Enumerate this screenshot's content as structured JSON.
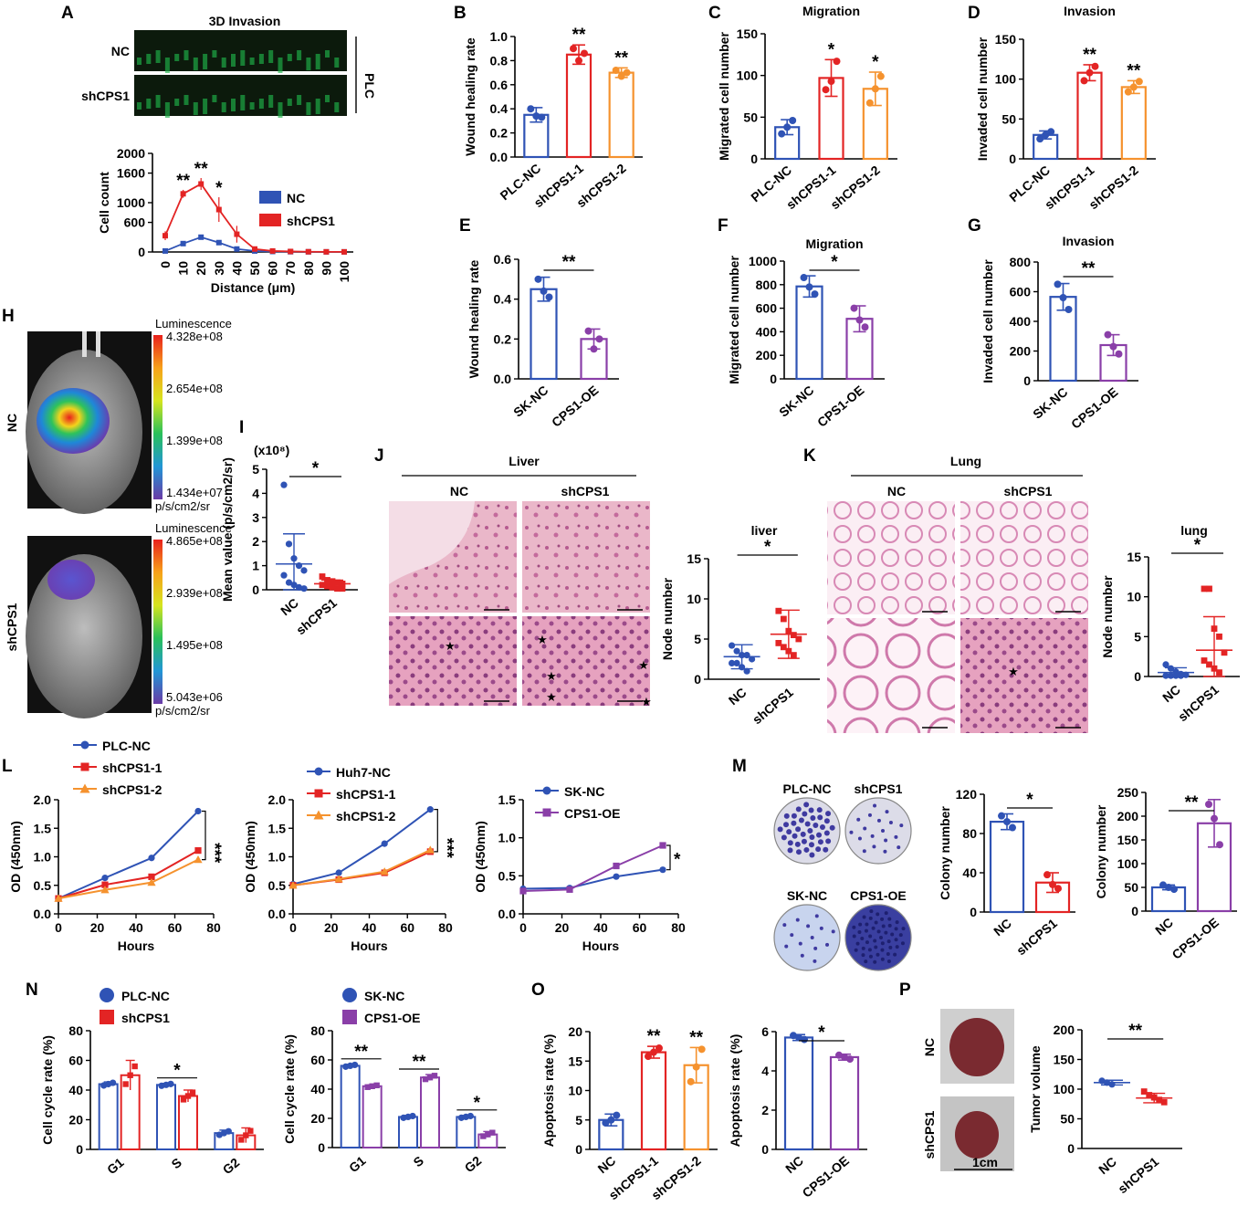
{
  "colors": {
    "blue": "#2f53b5",
    "red": "#e32424",
    "orange": "#f5922e",
    "purple": "#8a3fa8"
  },
  "panel_labels": [
    "A",
    "B",
    "C",
    "D",
    "E",
    "F",
    "G",
    "H",
    "I",
    "J",
    "K",
    "L",
    "M",
    "N",
    "O",
    "P"
  ],
  "A": {
    "title": "3D Invasion",
    "rows": [
      "NC",
      "shCPS1"
    ],
    "side": "PLC"
  },
  "H": {
    "rows": [
      "NC",
      "shCPS1"
    ],
    "scales": [
      {
        "title": "Luminescence",
        "ticks": [
          "4.328e+08",
          "2.654e+08",
          "1.399e+08",
          "1.434e+07"
        ],
        "unit": "p/s/cm2/sr"
      },
      {
        "title": "Luminescence",
        "ticks": [
          "4.865e+08",
          "2.939e+08",
          "1.495e+08",
          "5.043e+06"
        ],
        "unit": "p/s/cm2/sr"
      }
    ]
  },
  "J": {
    "header": "Liver",
    "cols": [
      "NC",
      "shCPS1"
    ]
  },
  "K": {
    "header": "Lung",
    "cols": [
      "NC",
      "shCPS1"
    ]
  },
  "M": {
    "dishes": [
      "PLC-NC",
      "shCPS1",
      "SK-NC",
      "CPS1-OE"
    ]
  },
  "P": {
    "rows": [
      "NC",
      "shCPS1"
    ],
    "scale": "1cm"
  },
  "chart_data": [
    {
      "id": "A",
      "type": "line",
      "xlabel": "Distance  (μm)",
      "ylabel": "Cell count",
      "ylim": [
        0,
        2000
      ],
      "yticks": [
        0,
        600,
        1000,
        1600,
        2000
      ],
      "x": [
        0,
        10,
        20,
        30,
        40,
        50,
        60,
        70,
        80,
        90,
        100
      ],
      "xticks": [
        "0",
        "10",
        "20",
        "30",
        "40",
        "50",
        "60",
        "70",
        "80",
        "90",
        "100"
      ],
      "legend": "right",
      "series": [
        {
          "name": "NC",
          "color": "#2f53b5",
          "values": [
            20,
            170,
            300,
            190,
            60,
            20,
            10,
            5,
            3,
            2,
            2
          ]
        },
        {
          "name": "shCPS1",
          "color": "#e32424",
          "values": [
            330,
            1180,
            1380,
            860,
            360,
            60,
            20,
            10,
            5,
            3,
            2
          ],
          "err": [
            90,
            80,
            120,
            250,
            170,
            0,
            0,
            0,
            0,
            0,
            0
          ]
        }
      ],
      "annotations": [
        {
          "text": "**",
          "x": 10
        },
        {
          "text": "**",
          "x": 20
        },
        {
          "text": "*",
          "x": 30
        }
      ]
    },
    {
      "id": "B",
      "type": "bar",
      "ylabel": "Wound healing rate",
      "ylim": [
        0,
        1.0
      ],
      "yticks": [
        "0.0",
        "0.2",
        "0.4",
        "0.6",
        "0.8",
        "1.0"
      ],
      "categories": [
        "PLC-NC",
        "shCPS1-1",
        "shCPS1-2"
      ],
      "values": [
        0.35,
        0.85,
        0.7
      ],
      "err": [
        0.06,
        0.08,
        0.04
      ],
      "colors": [
        "#2f53b5",
        "#e32424",
        "#f5922e"
      ],
      "points": [
        [
          0.4,
          0.34,
          0.33
        ],
        [
          0.9,
          0.8,
          0.86
        ],
        [
          0.72,
          0.67,
          0.7
        ]
      ],
      "sig": [
        "",
        "**",
        "**"
      ]
    },
    {
      "id": "C",
      "type": "bar",
      "title": "Migration",
      "ylabel": "Migrated cell number",
      "ylim": [
        0,
        150
      ],
      "yticks": [
        "0",
        "50",
        "100",
        "150"
      ],
      "categories": [
        "PLC-NC",
        "shCPS1-1",
        "shCPS1-2"
      ],
      "values": [
        38,
        97,
        84
      ],
      "err": [
        9,
        22,
        20
      ],
      "colors": [
        "#2f53b5",
        "#e32424",
        "#f5922e"
      ],
      "points": [
        [
          30,
          38,
          46
        ],
        [
          83,
          93,
          117
        ],
        [
          67,
          84,
          99
        ]
      ],
      "sig": [
        "",
        "*",
        "*"
      ]
    },
    {
      "id": "D",
      "type": "bar",
      "title": "Invasion",
      "ylabel": "Invaded cell number",
      "ylim": [
        0,
        150
      ],
      "yticks": [
        "0",
        "50",
        "100",
        "150"
      ],
      "categories": [
        "PLC-NC",
        "shCPS1-1",
        "shCPS1-2"
      ],
      "values": [
        30,
        108,
        90
      ],
      "err": [
        5,
        10,
        8
      ],
      "colors": [
        "#2f53b5",
        "#e32424",
        "#f5922e"
      ],
      "points": [
        [
          25,
          30,
          34
        ],
        [
          98,
          108,
          116
        ],
        [
          84,
          90,
          97
        ]
      ],
      "sig": [
        "",
        "**",
        "**"
      ]
    },
    {
      "id": "E",
      "type": "bar",
      "ylabel": "Wound healing rate",
      "ylim": [
        0,
        0.6
      ],
      "yticks": [
        "0.0",
        "0.2",
        "0.4",
        "0.6"
      ],
      "categories": [
        "SK-NC",
        "CPS1-OE"
      ],
      "values": [
        0.45,
        0.2
      ],
      "err": [
        0.06,
        0.05
      ],
      "colors": [
        "#2f53b5",
        "#8a3fa8"
      ],
      "points": [
        [
          0.5,
          0.44,
          0.41
        ],
        [
          0.24,
          0.15,
          0.2
        ]
      ],
      "sig_bracket": "**"
    },
    {
      "id": "F",
      "type": "bar",
      "title": "Migration",
      "ylabel": "Migrated cell number",
      "ylim": [
        0,
        1000
      ],
      "yticks": [
        "0",
        "200",
        "400",
        "600",
        "800",
        "1000"
      ],
      "categories": [
        "SK-NC",
        "CPS1-OE"
      ],
      "values": [
        785,
        510
      ],
      "err": [
        90,
        110
      ],
      "colors": [
        "#2f53b5",
        "#8a3fa8"
      ],
      "points": [
        [
          860,
          780,
          720
        ],
        [
          600,
          500,
          440
        ]
      ],
      "sig_bracket": "*"
    },
    {
      "id": "G",
      "type": "bar",
      "title": "Invasion",
      "ylabel": "Invaded cell number",
      "ylim": [
        0,
        800
      ],
      "yticks": [
        "0",
        "200",
        "400",
        "600",
        "800"
      ],
      "categories": [
        "SK-NC",
        "CPS1-OE"
      ],
      "values": [
        565,
        240
      ],
      "err": [
        90,
        70
      ],
      "colors": [
        "#2f53b5",
        "#8a3fa8"
      ],
      "points": [
        [
          650,
          560,
          480
        ],
        [
          310,
          230,
          180
        ]
      ],
      "sig_bracket": "**"
    },
    {
      "id": "I",
      "type": "scatter",
      "ylabel": "Mean value (p/s/cm2/sr)",
      "scale_note": "(x10⁸)",
      "ylim": [
        0,
        5
      ],
      "yticks": [
        "0",
        "1",
        "2",
        "3",
        "4",
        "5"
      ],
      "categories": [
        "NC",
        "shCPS1"
      ],
      "colors": [
        "#2f53b5",
        "#e32424"
      ],
      "means": [
        1.07,
        0.25
      ],
      "sd": [
        1.25,
        0.15
      ],
      "points": [
        [
          4.35,
          1.9,
          1.3,
          1.0,
          0.8,
          0.6,
          0.3,
          0.2,
          0.1,
          0.05
        ],
        [
          0.55,
          0.4,
          0.35,
          0.3,
          0.25,
          0.2,
          0.15,
          0.1,
          0.05,
          0.05
        ]
      ],
      "sig_bracket": "*"
    },
    {
      "id": "J",
      "type": "scatter",
      "title": "liver",
      "ylabel": "Node number",
      "ylim": [
        0,
        15
      ],
      "yticks": [
        "0",
        "5",
        "10",
        "15"
      ],
      "categories": [
        "NC",
        "shCPS1"
      ],
      "colors": [
        "#2f53b5",
        "#e32424"
      ],
      "means": [
        2.8,
        5.6
      ],
      "sd": [
        1.5,
        3.0
      ],
      "points": [
        [
          4.2,
          3.5,
          3,
          3,
          2.5,
          2,
          2,
          1.5,
          1
        ],
        [
          8.5,
          7.5,
          6,
          5.5,
          5,
          4.5,
          4,
          3.5,
          3
        ]
      ],
      "sig_bracket": "*"
    },
    {
      "id": "K",
      "type": "scatter",
      "title": "lung",
      "ylabel": "Node number",
      "ylim": [
        0,
        15
      ],
      "yticks": [
        "0",
        "5",
        "10",
        "15"
      ],
      "categories": [
        "NC",
        "shCPS1"
      ],
      "colors": [
        "#2f53b5",
        "#e32424"
      ],
      "means": [
        0.5,
        3.3
      ],
      "sd": [
        0.6,
        4.2
      ],
      "points": [
        [
          1.5,
          1,
          0.6,
          0.3,
          0.2,
          0.1,
          0.1,
          0.1,
          0.1
        ],
        [
          11,
          11,
          6,
          5,
          3,
          2,
          1.5,
          1,
          0.5
        ]
      ],
      "sig_bracket": "*"
    },
    {
      "id": "L1",
      "type": "line",
      "xlabel": "Hours",
      "ylabel": "OD (450nm)",
      "ylim": [
        0,
        2.0
      ],
      "yticks": [
        "0.0",
        "0.5",
        "1.0",
        "1.5",
        "2.0"
      ],
      "x": [
        0,
        24,
        48,
        72
      ],
      "xticks": [
        "0",
        "20",
        "40",
        "60",
        "80"
      ],
      "xlim": [
        0,
        80
      ],
      "series": [
        {
          "name": "PLC-NC",
          "color": "#2f53b5",
          "values": [
            0.27,
            0.63,
            0.98,
            1.8
          ]
        },
        {
          "name": "shCPS1-1",
          "color": "#e32424",
          "values": [
            0.27,
            0.51,
            0.65,
            1.11
          ]
        },
        {
          "name": "shCPS1-2",
          "color": "#f5922e",
          "values": [
            0.27,
            0.42,
            0.55,
            0.95
          ]
        }
      ],
      "sig": "***"
    },
    {
      "id": "L2",
      "type": "line",
      "xlabel": "Hours",
      "ylabel": "OD (450nm)",
      "ylim": [
        0,
        2.0
      ],
      "yticks": [
        "0.0",
        "0.5",
        "1.0",
        "1.5",
        "2.0"
      ],
      "x": [
        0,
        24,
        48,
        72
      ],
      "xticks": [
        "0",
        "20",
        "40",
        "60",
        "80"
      ],
      "xlim": [
        0,
        80
      ],
      "series": [
        {
          "name": "Huh7-NC",
          "color": "#2f53b5",
          "values": [
            0.52,
            0.72,
            1.23,
            1.83
          ]
        },
        {
          "name": "shCPS1-1",
          "color": "#e32424",
          "values": [
            0.5,
            0.6,
            0.72,
            1.09
          ]
        },
        {
          "name": "shCPS1-2",
          "color": "#f5922e",
          "values": [
            0.5,
            0.61,
            0.74,
            1.12
          ]
        }
      ],
      "sig": "***"
    },
    {
      "id": "L3",
      "type": "line",
      "xlabel": "Hours",
      "ylabel": "OD (450nm)",
      "ylim": [
        0,
        1.5
      ],
      "yticks": [
        "0.0",
        "0.5",
        "1.0",
        "1.5"
      ],
      "x": [
        0,
        24,
        48,
        72
      ],
      "xticks": [
        "0",
        "20",
        "40",
        "60",
        "80"
      ],
      "xlim": [
        0,
        80
      ],
      "series": [
        {
          "name": "SK-NC",
          "color": "#2f53b5",
          "values": [
            0.33,
            0.34,
            0.49,
            0.58
          ]
        },
        {
          "name": "CPS1-OE",
          "color": "#8a3fa8",
          "values": [
            0.3,
            0.32,
            0.63,
            0.9
          ]
        }
      ],
      "sig": "*"
    },
    {
      "id": "M1",
      "type": "bar",
      "ylabel": "Colony number",
      "ylim": [
        0,
        120
      ],
      "yticks": [
        "0",
        "40",
        "80",
        "120"
      ],
      "categories": [
        "NC",
        "shCPS1"
      ],
      "values": [
        92,
        30
      ],
      "err": [
        8,
        10
      ],
      "colors": [
        "#2f53b5",
        "#e32424"
      ],
      "points": [
        [
          98,
          92,
          86
        ],
        [
          38,
          28,
          24
        ]
      ],
      "sig_bracket": "*"
    },
    {
      "id": "M2",
      "type": "bar",
      "ylabel": "Colony number",
      "ylim": [
        0,
        250
      ],
      "yticks": [
        "0",
        "50",
        "100",
        "150",
        "200",
        "250"
      ],
      "categories": [
        "NC",
        "CPS1-OE"
      ],
      "values": [
        50,
        185
      ],
      "err": [
        5,
        50
      ],
      "colors": [
        "#2f53b5",
        "#8a3fa8"
      ],
      "points": [
        [
          55,
          50,
          46
        ],
        [
          225,
          195,
          140
        ]
      ],
      "sig_bracket": "**"
    },
    {
      "id": "N1",
      "type": "bar",
      "ylabel": "Cell cycle rate (%)",
      "ylim": [
        0,
        80
      ],
      "yticks": [
        "0",
        "20",
        "40",
        "60",
        "80"
      ],
      "categories": [
        "G1",
        "S",
        "G2"
      ],
      "series": [
        {
          "name": "PLC-NC",
          "color": "#2f53b5",
          "values": [
            44,
            43.5,
            11
          ],
          "err": [
            1.5,
            1,
            2
          ]
        },
        {
          "name": "shCPS1",
          "color": "#e32424",
          "values": [
            50,
            36,
            9.5
          ],
          "err": [
            10,
            4,
            5
          ]
        }
      ],
      "sig": [
        "",
        "*",
        ""
      ]
    },
    {
      "id": "N2",
      "type": "bar",
      "ylabel": "Cell cycle rate (%)",
      "ylim": [
        0,
        80
      ],
      "yticks": [
        "0",
        "20",
        "40",
        "60",
        "80"
      ],
      "categories": [
        "G1",
        "S",
        "G2"
      ],
      "series": [
        {
          "name": "SK-NC",
          "color": "#2f53b5",
          "values": [
            56,
            21,
            21
          ],
          "err": [
            1,
            1,
            1
          ]
        },
        {
          "name": "CPS1-OE",
          "color": "#8a3fa8",
          "values": [
            42,
            48,
            9
          ],
          "err": [
            1,
            2,
            2
          ]
        }
      ],
      "sig": [
        "**",
        "**",
        "*"
      ]
    },
    {
      "id": "O1",
      "type": "bar",
      "ylabel": "Apoptosis rate (%)",
      "ylim": [
        0,
        20
      ],
      "yticks": [
        "0",
        "5",
        "10",
        "15",
        "20"
      ],
      "categories": [
        "NC",
        "shCPS1-1",
        "shCPS1-2"
      ],
      "values": [
        5.0,
        16.5,
        14.3
      ],
      "err": [
        1.0,
        1.0,
        3.0
      ],
      "colors": [
        "#2f53b5",
        "#e32424",
        "#f5922e"
      ],
      "points": [
        [
          4.5,
          5.0,
          5.8
        ],
        [
          15.8,
          16.5,
          17.2
        ],
        [
          11.5,
          14,
          17
        ]
      ],
      "sig": [
        "",
        "**",
        "**"
      ]
    },
    {
      "id": "O2",
      "type": "bar",
      "ylabel": "Apoptosis rate (%)",
      "ylim": [
        0,
        6
      ],
      "yticks": [
        "0",
        "2",
        "4",
        "6"
      ],
      "categories": [
        "NC",
        "CPS1-OE"
      ],
      "values": [
        5.7,
        4.7
      ],
      "err": [
        0.15,
        0.15
      ],
      "colors": [
        "#2f53b5",
        "#8a3fa8"
      ],
      "points": [
        [
          5.8,
          5.7,
          5.6
        ],
        [
          4.8,
          4.7,
          4.6
        ]
      ],
      "sig_bracket": "*"
    },
    {
      "id": "P",
      "type": "scatter",
      "ylabel": "Tumor volume",
      "ylim": [
        0,
        200
      ],
      "yticks": [
        "0",
        "50",
        "100",
        "150",
        "200"
      ],
      "categories": [
        "NC",
        "shCPS1"
      ],
      "colors": [
        "#2f53b5",
        "#e32424"
      ],
      "means": [
        111,
        85
      ],
      "sd": [
        4,
        8
      ],
      "points": [
        [
          114,
          111,
          108
        ],
        [
          96,
          90,
          86,
          82,
          78
        ]
      ],
      "sig_bracket": "**"
    }
  ]
}
